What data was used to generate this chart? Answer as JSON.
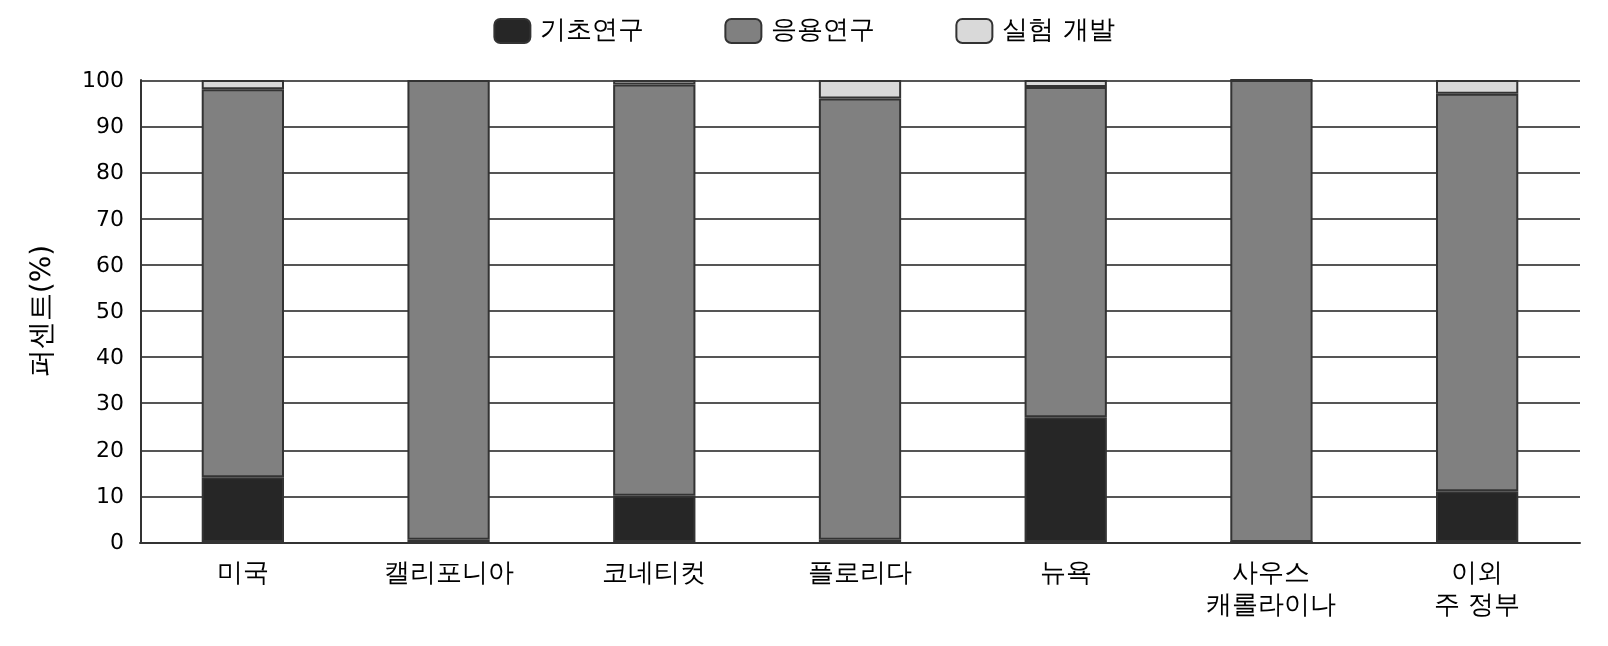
{
  "chart_data": {
    "type": "bar",
    "stacked": true,
    "ylabel": "퍼센트(%)",
    "categories": [
      "미국",
      "캘리포니아",
      "코네티컷",
      "플로리다",
      "뉴욕",
      "사우스\n캐롤라이나",
      "이외\n주 정부"
    ],
    "series": [
      {
        "name": "기초연구",
        "color": "#262626",
        "values": [
          14,
          0.5,
          10,
          0.5,
          27,
          0,
          11
        ]
      },
      {
        "name": "응용연구",
        "color": "#808080",
        "values": [
          84,
          99.5,
          89,
          95.5,
          71.5,
          100,
          86
        ]
      },
      {
        "name": "실험 개발",
        "color": "#d9d9d9",
        "values": [
          2,
          null,
          1,
          4,
          1.5,
          0,
          3
        ]
      }
    ],
    "ylim": [
      0,
      100
    ],
    "yticks": [
      0,
      10,
      20,
      30,
      40,
      50,
      60,
      70,
      80,
      90,
      100
    ],
    "grid": "y",
    "legend": "top"
  }
}
